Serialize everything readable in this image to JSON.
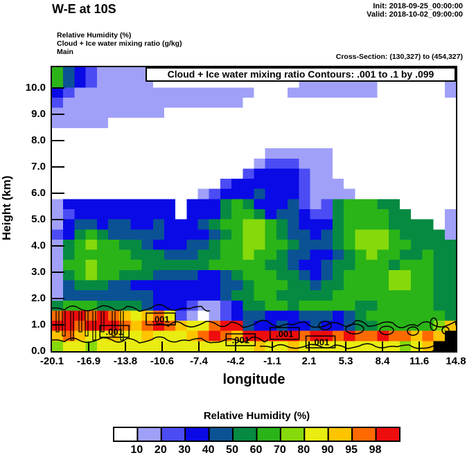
{
  "header": {
    "title": "W-E at 10S",
    "init_line": "Init: 2018-09-25_00:00:00",
    "valid_line": "Valid: 2018-10-02_09:00:00",
    "field_lines": [
      "Relative Humidity  (%)",
      "Cloud + Ice water mixing ratio  (g/kg)",
      "Main"
    ],
    "cross_section": "Cross-Section: (130,327) to (454,327)"
  },
  "chart_data": {
    "type": "heatmap",
    "subtype": "filled-contour vertical cross-section of relative humidity with cloud water contour overlay",
    "overlay_title": "Cloud + Ice water mixing ratio Contours: .001 to .1 by .099",
    "xlabel": "longitude",
    "ylabel": "Height (km)",
    "x_tick_labels": [
      "-20.1",
      "-16.9",
      "-13.8",
      "-10.6",
      "-7.4",
      "-4.2",
      "-1.1",
      "2.1",
      "5.3",
      "8.4",
      "11.6",
      "14.8"
    ],
    "y_tick_labels": [
      "0.0",
      "1.0",
      "2.0",
      "3.0",
      "4.0",
      "5.0",
      "6.0",
      "7.0",
      "8.0",
      "9.0",
      "10.0"
    ],
    "x_range_deg": [
      -20.1,
      14.8
    ],
    "y_range_km": [
      0,
      10.8
    ],
    "grid_on": false,
    "legend_position": "bottom colorbar",
    "colorbar": {
      "title": "Relative Humidity  (%)",
      "tick_labels": [
        "10",
        "20",
        "30",
        "40",
        "50",
        "60",
        "70",
        "80",
        "90",
        "95",
        "98"
      ],
      "cell_colors": [
        "#FFFFFF",
        "#A0A0F8",
        "#4C4CF5",
        "#0A0AE6",
        "#0B5294",
        "#068A42",
        "#2AB418",
        "#86D90B",
        "#E8EC11",
        "#FFC400",
        "#FF6A00",
        "#EE0D0D"
      ]
    },
    "terrain_color": "#000000",
    "rh_grid": {
      "cols": 36,
      "rows_count": 28,
      "encoding": "one char per cell, base-12 digit 0..b = RH band index into colorbar cell_colors (0 = <10%, b = >98%); x = terrain (black); row 0 = top of plot (10.8 km), last row = surface (0 km)",
      "rows": [
        "643211111111110000000000000000000000",
        "643211111000000000000011111110000001",
        "321111111111111111000111111110000001",
        "211111111111111110000000000000000000",
        "111111111100000000000000000000000000",
        "111110000000000000000000000000000000",
        "000000000000000000000000000000000000",
        "000000000000000000000000000000000000",
        "000000000000000000011111100000000000",
        "000000000000000000122211100000000000",
        "000000000000000002333321100000000000",
        "000000000000000233333321110000000000",
        "000000000000012333433321111000000000",
        "133333333330333565333421256665500000",
        "123333333330333566534432256666550001",
        "134434433433345667765433356666555501",
        "235654444433334567765443456777655551",
        "156766554333445667766544456777665555",
        "156666655544455667665443345676655655",
        "166766665555556666655433455666566655",
        "156766555444433456665543456666776655",
        "145554433333333445666554556666776655",
        "144444444333333455665555566666666655",
        "566655554333211235566566666556666655",
        "abbaba989a82101234433344434566666665",
        "bbabbba9aba988abb4334334334556666679",
        "9a98898898889aba9bbbbbabbabaabaa9a9x",
        "7887888888888888889889888888888789xx"
      ]
    },
    "contour_labels": [
      {
        "text": ".001",
        "lon": -14.7,
        "km": 0.74
      },
      {
        "text": ".001",
        "lon": -10.7,
        "km": 1.21
      },
      {
        "text": ".001",
        "lon": -3.8,
        "km": 0.42
      },
      {
        "text": ".001",
        "lon": 0.0,
        "km": 0.66
      },
      {
        "text": ".001",
        "lon": 3.1,
        "km": 0.34
      }
    ]
  }
}
